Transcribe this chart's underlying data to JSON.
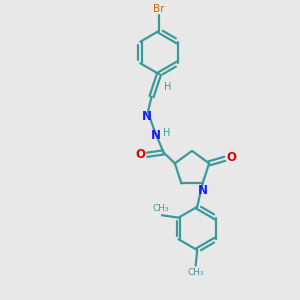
{
  "background_color": "#e8e8e8",
  "bond_color": "#3a9a9a",
  "nitrogen_color": "#1a1aff",
  "oxygen_color": "#dd0000",
  "bromine_color": "#cc6600",
  "hydrogen_color": "#3a9a9a",
  "figsize": [
    3.0,
    3.0
  ],
  "dpi": 100,
  "xlim": [
    0,
    10
  ],
  "ylim": [
    0,
    10
  ]
}
